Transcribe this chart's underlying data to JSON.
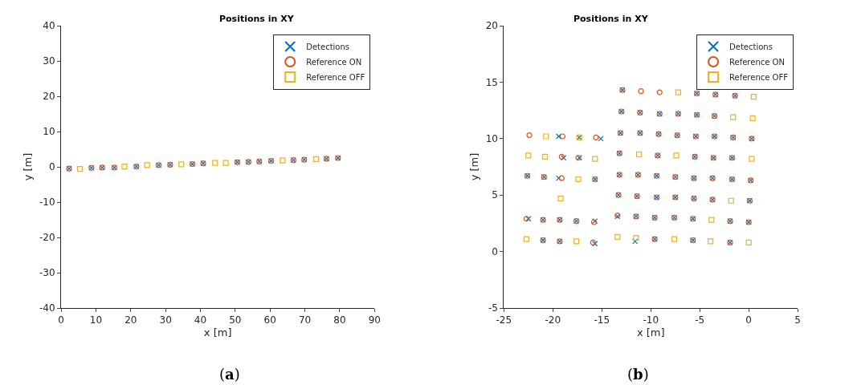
{
  "chart_data": [
    {
      "type": "scatter",
      "title": "Positions in XY",
      "xlabel": "x [m]",
      "ylabel": "y [m]",
      "xlim": [
        0,
        90
      ],
      "xticks": [
        0,
        10,
        20,
        30,
        40,
        50,
        60,
        70,
        80,
        90
      ],
      "ylim": [
        -40,
        40
      ],
      "yticks": [
        -40,
        -30,
        -20,
        -10,
        0,
        10,
        20,
        30,
        40
      ],
      "legend": "top right",
      "annotations": [
        "(a)"
      ],
      "series": [
        {
          "name": "Detections",
          "color": "#0072bd",
          "marker": "cross",
          "x": [
            2.3,
            8.7,
            11.8,
            15.3,
            21.6,
            28.0,
            31.3,
            37.7,
            40.8,
            50.6,
            53.8,
            56.9,
            60.3,
            66.7,
            69.8,
            76.2,
            79.5
          ],
          "values": [
            -0.5,
            -0.3,
            -0.2,
            -0.2,
            0.1,
            0.5,
            0.6,
            0.8,
            1.0,
            1.3,
            1.4,
            1.5,
            1.7,
            1.9,
            2.0,
            2.3,
            2.5
          ]
        },
        {
          "name": "Reference ON",
          "color": "#d95319",
          "marker": "circle",
          "x": [
            2.3,
            8.7,
            11.8,
            15.3,
            21.6,
            28.0,
            31.3,
            37.7,
            40.8,
            50.6,
            53.8,
            56.9,
            60.3,
            66.7,
            69.8,
            76.2,
            79.5
          ],
          "values": [
            -0.5,
            -0.3,
            -0.2,
            -0.2,
            0.1,
            0.5,
            0.6,
            0.8,
            1.0,
            1.3,
            1.4,
            1.5,
            1.7,
            1.9,
            2.0,
            2.3,
            2.5
          ]
        },
        {
          "name": "Reference OFF",
          "color": "#edb120",
          "marker": "square",
          "x": [
            5.4,
            18.2,
            24.7,
            34.5,
            44.2,
            47.3,
            63.6,
            73.2
          ],
          "values": [
            -0.6,
            0.1,
            0.5,
            0.7,
            1.1,
            1.1,
            1.8,
            2.2
          ]
        }
      ]
    },
    {
      "type": "scatter",
      "title": "Positions in XY",
      "xlabel": "x [m]",
      "ylabel": "y [m]",
      "xlim": [
        -25,
        5
      ],
      "xticks": [
        -25,
        -20,
        -15,
        -10,
        -5,
        0,
        5
      ],
      "ylim": [
        -5,
        20
      ],
      "yticks": [
        -5,
        0,
        5,
        10,
        15,
        20
      ],
      "legend": "top right",
      "annotations": [
        "(b)"
      ],
      "series": [
        {
          "name": "Detections",
          "color": "#0072bd",
          "marker": "cross",
          "x": [
            -21.0,
            -19.3,
            -15.7,
            -11.6,
            -9.6,
            -5.7,
            -1.9,
            -22.5,
            -21.0,
            -19.3,
            -17.6,
            -15.7,
            -13.4,
            -11.5,
            -9.6,
            -7.6,
            -5.7,
            -1.9,
            0.0,
            -13.3,
            -11.4,
            -9.4,
            -7.5,
            -5.6,
            -3.7,
            0.1,
            -22.6,
            -20.9,
            -19.4,
            -15.7,
            -13.2,
            -11.3,
            -9.4,
            -7.5,
            -5.6,
            -3.7,
            -1.7,
            0.2,
            -18.9,
            -17.3,
            -13.2,
            -9.3,
            -5.5,
            -3.6,
            -1.7,
            -19.4,
            -17.3,
            -15.1,
            -13.1,
            -11.1,
            -9.2,
            -7.3,
            -5.4,
            -3.5,
            -1.6,
            0.3,
            -13.0,
            -11.1,
            -9.1,
            -7.2,
            -5.3,
            -3.5,
            -12.9,
            -5.3,
            -3.4,
            -1.4
          ],
          "values": [
            1.0,
            0.9,
            0.7,
            0.9,
            1.1,
            1.0,
            0.8,
            2.9,
            2.8,
            2.8,
            2.7,
            2.7,
            3.1,
            3.1,
            3.0,
            3.0,
            2.9,
            2.7,
            2.6,
            5.0,
            4.9,
            4.8,
            4.8,
            4.7,
            4.6,
            4.5,
            6.7,
            6.6,
            6.5,
            6.4,
            6.8,
            6.8,
            6.7,
            6.6,
            6.5,
            6.5,
            6.4,
            6.3,
            8.3,
            8.3,
            8.7,
            8.5,
            8.4,
            8.3,
            8.3,
            10.2,
            10.1,
            10.0,
            10.5,
            10.5,
            10.4,
            10.3,
            10.2,
            10.2,
            10.1,
            10.0,
            12.4,
            12.3,
            12.2,
            12.2,
            12.1,
            12.0,
            14.3,
            14.0,
            13.9,
            13.8
          ]
        },
        {
          "name": "Reference ON",
          "color": "#d95319",
          "marker": "circle",
          "x": [
            -21.0,
            -19.3,
            -15.9,
            -9.6,
            -5.7,
            -1.9,
            -22.7,
            -21.0,
            -19.3,
            -17.6,
            -15.8,
            -13.4,
            -11.5,
            -9.6,
            -7.6,
            -5.7,
            -1.9,
            0.0,
            -13.3,
            -11.4,
            -9.4,
            -7.5,
            -5.6,
            -3.7,
            0.1,
            -22.6,
            -20.9,
            -19.1,
            -15.7,
            -13.2,
            -11.3,
            -9.4,
            -7.5,
            -5.6,
            -3.7,
            -1.7,
            0.2,
            -19.1,
            -17.4,
            -13.2,
            -9.3,
            -5.5,
            -3.6,
            -1.7,
            -22.4,
            -19.0,
            -15.6,
            -13.1,
            -11.1,
            -9.2,
            -7.3,
            -5.4,
            -3.5,
            -1.6,
            0.3,
            -13.0,
            -11.1,
            -9.1,
            -7.2,
            -5.3,
            -3.5,
            -12.9,
            -11.0,
            -9.1,
            -5.3,
            -3.4,
            -1.4
          ],
          "values": [
            1.0,
            0.9,
            0.8,
            1.1,
            1.0,
            0.8,
            2.9,
            2.8,
            2.8,
            2.7,
            2.6,
            3.2,
            3.1,
            3.0,
            3.0,
            2.9,
            2.7,
            2.6,
            5.0,
            4.9,
            4.8,
            4.8,
            4.7,
            4.6,
            4.5,
            6.7,
            6.6,
            6.5,
            6.4,
            6.8,
            6.8,
            6.7,
            6.6,
            6.5,
            6.5,
            6.4,
            6.3,
            8.4,
            8.3,
            8.7,
            8.5,
            8.4,
            8.3,
            8.3,
            10.3,
            10.2,
            10.1,
            10.5,
            10.5,
            10.4,
            10.3,
            10.2,
            10.2,
            10.1,
            10.0,
            12.4,
            12.3,
            12.2,
            12.2,
            12.1,
            12.0,
            14.3,
            14.2,
            14.1,
            14.0,
            13.9,
            13.8
          ]
        },
        {
          "name": "Reference OFF",
          "color": "#edb120",
          "marker": "square",
          "x": [
            -22.7,
            -17.6,
            -13.4,
            -11.5,
            -7.6,
            -3.9,
            0.0,
            -3.8,
            -19.2,
            -1.8,
            -17.4,
            -22.5,
            -20.8,
            -15.7,
            -11.2,
            -7.4,
            0.3,
            -20.7,
            -17.3,
            -1.6,
            0.4,
            -7.2,
            0.5
          ],
          "values": [
            1.1,
            0.9,
            1.3,
            1.2,
            1.1,
            0.9,
            0.8,
            2.8,
            4.7,
            4.5,
            6.4,
            8.5,
            8.4,
            8.2,
            8.6,
            8.5,
            8.2,
            10.2,
            10.1,
            11.9,
            11.8,
            14.1,
            13.7
          ]
        }
      ]
    }
  ]
}
